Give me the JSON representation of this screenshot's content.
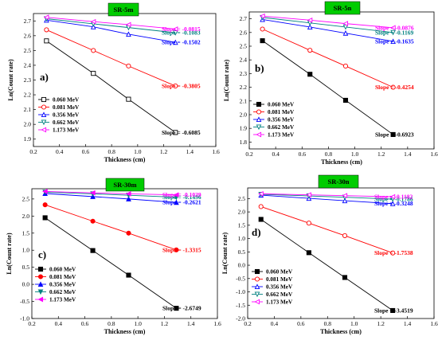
{
  "chart_data": [
    {
      "type": "line",
      "title": "SR-5m",
      "panel_label": "a)",
      "xlabel": "Thickness (cm)",
      "ylabel": "Ln(Count rate)",
      "xlim": [
        0.2,
        1.6
      ],
      "ylim": [
        1.85,
        2.75
      ],
      "xticks": [
        "0.2",
        "0.4",
        "0.6",
        "0.8",
        "1.0",
        "1.2",
        "1.4",
        "1.6"
      ],
      "yticks": [
        "1.9",
        "2.0",
        "2.1",
        "2.2",
        "2.3",
        "2.4",
        "2.5",
        "2.6",
        "2.7"
      ],
      "legend_position": "bottom-left",
      "x": [
        0.3,
        0.66,
        0.93,
        1.29
      ],
      "series": [
        {
          "name": "0.060 MeV",
          "color": "#000000",
          "marker": "square-open",
          "values": [
            2.565,
            2.345,
            2.17,
            1.945
          ],
          "slope": "Slope = -0.6085"
        },
        {
          "name": "0.081 MeV",
          "color": "#ff0000",
          "marker": "circle-open",
          "values": [
            2.64,
            2.5,
            2.395,
            2.26
          ],
          "slope": "Slope = -0.3805"
        },
        {
          "name": "0.356 MeV",
          "color": "#0000ff",
          "marker": "triangle-open",
          "values": [
            2.705,
            2.66,
            2.61,
            2.555
          ],
          "slope": "Slope = -0.1502"
        },
        {
          "name": "0.662 MeV",
          "color": "#008080",
          "marker": "triangle-down-open",
          "values": [
            2.715,
            2.68,
            2.655,
            2.62
          ],
          "slope": "Slope = -0.1083"
        },
        {
          "name": "1.173 MeV",
          "color": "#ff00ff",
          "marker": "triangle-left-open",
          "values": [
            2.725,
            2.695,
            2.675,
            2.645
          ],
          "slope": "Slope = -0.0815"
        }
      ]
    },
    {
      "type": "line",
      "title": "SR-5n",
      "panel_label": "b)",
      "xlabel": "Thickness (cm)",
      "ylabel": "Ln(Count rate)",
      "xlim": [
        0.2,
        1.6
      ],
      "ylim": [
        1.75,
        2.75
      ],
      "xticks": [
        "0.2",
        "0.4",
        "0.6",
        "0.8",
        "1.0",
        "1.2",
        "1.4",
        "1.6"
      ],
      "yticks": [
        "1.8",
        "1.9",
        "2.0",
        "2.1",
        "2.2",
        "2.3",
        "2.4",
        "2.5",
        "2.6",
        "2.7"
      ],
      "legend_position": "bottom-left",
      "x": [
        0.3,
        0.66,
        0.93,
        1.29
      ],
      "series": [
        {
          "name": "0.060 MeV",
          "color": "#000000",
          "marker": "square-filled",
          "values": [
            2.54,
            2.295,
            2.105,
            1.855
          ],
          "slope": "Slope = -0.6923"
        },
        {
          "name": "0.081 MeV",
          "color": "#ff0000",
          "marker": "circle-open",
          "values": [
            2.625,
            2.47,
            2.355,
            2.2
          ],
          "slope": "Slope = -0.4254"
        },
        {
          "name": "0.356 MeV",
          "color": "#0000ff",
          "marker": "triangle-open",
          "values": [
            2.695,
            2.64,
            2.595,
            2.535
          ],
          "slope": "Slope = -0.1635"
        },
        {
          "name": "0.662 MeV",
          "color": "#008080",
          "marker": "triangle-down-open",
          "values": [
            2.71,
            2.67,
            2.64,
            2.6
          ],
          "slope": "Slope = -0.1169"
        },
        {
          "name": "1.173 MeV",
          "color": "#ff00ff",
          "marker": "triangle-left-open",
          "values": [
            2.72,
            2.69,
            2.665,
            2.635
          ],
          "slope": "Slope = -0.0876"
        }
      ]
    },
    {
      "type": "line",
      "title": "SR-30m",
      "panel_label": "c)",
      "xlabel": "Thickness (cm)",
      "ylabel": "Ln(Count rate)",
      "xlim": [
        0.2,
        1.6
      ],
      "ylim": [
        -1.0,
        2.8
      ],
      "xticks": [
        "0.2",
        "0.4",
        "0.6",
        "0.8",
        "1.0",
        "1.2",
        "1.4",
        "1.6"
      ],
      "yticks": [
        "-1.0",
        "-0.5",
        "0.0",
        "0.5",
        "1.0",
        "1.5",
        "2.0",
        "2.5"
      ],
      "legend_position": "bottom-left",
      "x": [
        0.3,
        0.66,
        0.93,
        1.29
      ],
      "series": [
        {
          "name": "0.060 MeV",
          "color": "#000000",
          "marker": "square-filled",
          "values": [
            1.95,
            0.99,
            0.27,
            -0.7
          ],
          "slope": "Slope = -2.6749"
        },
        {
          "name": "0.081 MeV",
          "color": "#ff0000",
          "marker": "circle-filled",
          "values": [
            2.33,
            1.85,
            1.5,
            1.01
          ],
          "slope": "Slope = -1.3315"
        },
        {
          "name": "0.356 MeV",
          "color": "#0000ff",
          "marker": "triangle-filled",
          "values": [
            2.66,
            2.57,
            2.5,
            2.4
          ],
          "slope": "Slope = -0.2621"
        },
        {
          "name": "0.662 MeV",
          "color": "#008080",
          "marker": "triangle-down-filled",
          "values": [
            2.7,
            2.65,
            2.61,
            2.55
          ],
          "slope": "Slope = -0.1496"
        },
        {
          "name": "1.173 MeV",
          "color": "#ff00ff",
          "marker": "triangle-left-filled",
          "values": [
            2.72,
            2.68,
            2.65,
            2.62
          ],
          "slope": "Slope = -0.1039"
        }
      ]
    },
    {
      "type": "line",
      "title": "SR-30n",
      "panel_label": "d)",
      "xlabel": "Thickness (cm)",
      "ylabel": "Ln(Count rate)",
      "xlim": [
        0.2,
        1.6
      ],
      "ylim": [
        -2.0,
        2.9
      ],
      "xticks": [
        "0.2",
        "0.4",
        "0.6",
        "0.8",
        "1.0",
        "1.2",
        "1.4",
        "1.6"
      ],
      "yticks": [
        "-2.0",
        "-1.5",
        "-1.0",
        "-0.5",
        "0.0",
        "0.5",
        "1.0",
        "1.5",
        "2.0",
        "2.5"
      ],
      "legend_position": "bottom-left",
      "x": [
        0.3,
        0.66,
        0.93,
        1.29
      ],
      "series": [
        {
          "name": "0.060 MeV",
          "color": "#000000",
          "marker": "square-filled",
          "values": [
            1.72,
            0.47,
            -0.46,
            -1.7
          ],
          "slope": "Slope = -3.4519"
        },
        {
          "name": "0.081 MeV",
          "color": "#ff0000",
          "marker": "circle-open",
          "values": [
            2.2,
            1.58,
            1.11,
            0.46
          ],
          "slope": "Slope = -1.7538"
        },
        {
          "name": "0.356 MeV",
          "color": "#0000ff",
          "marker": "triangle-open",
          "values": [
            2.63,
            2.51,
            2.42,
            2.31
          ],
          "slope": "Slope = -0.3248"
        },
        {
          "name": "0.662 MeV",
          "color": "#008080",
          "marker": "triangle-down-open",
          "values": [
            2.66,
            2.6,
            2.55,
            2.48
          ],
          "slope": "Slope = -0.1786"
        },
        {
          "name": "1.173 MeV",
          "color": "#ff00ff",
          "marker": "triangle-left-open",
          "values": [
            2.68,
            2.64,
            2.61,
            2.57
          ],
          "slope": "Slope = -0.1182"
        }
      ]
    }
  ]
}
